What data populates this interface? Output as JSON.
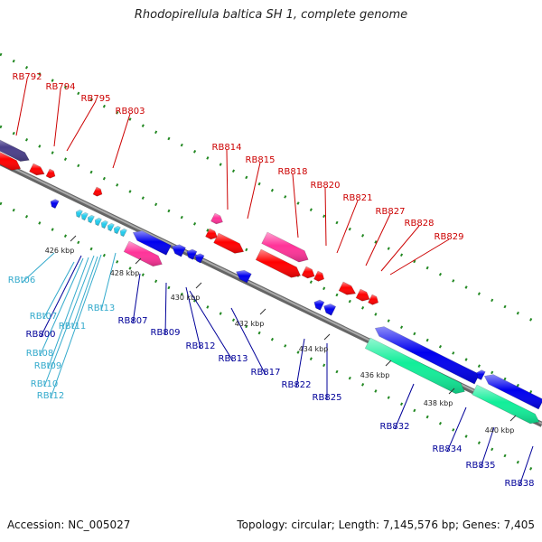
{
  "title": "Rhodopirellula baltica SH 1, complete genome",
  "footer": {
    "accession": "Accession: NC_005027",
    "topology": "Topology: circular; Length: 7,145,576 bp; Genes: 7,405"
  },
  "colors": {
    "forward_gene": "#ff0000",
    "forward_rna": "#ff3399",
    "reverse_gene": "#0000ee",
    "reverse_trna": "#22ccee",
    "reverse_rrna": "#11ee99",
    "other": "#4a3f8a",
    "backbone": "#888888",
    "tick": "#228822",
    "forward_label": "#cc0000",
    "reverse_label": "#000099",
    "trna_label": "#33aacc"
  },
  "ticks": [
    "426 kbp",
    "428 kbp",
    "430 kbp",
    "432 kbp",
    "434 kbp",
    "436 kbp",
    "438 kbp",
    "440 kbp"
  ],
  "forward_labels": [
    "RB792",
    "RB794",
    "RB795",
    "RB803",
    "RB814",
    "RB815",
    "RB818",
    "RB820",
    "RB821",
    "RB827",
    "RB828",
    "RB829"
  ],
  "reverse_labels": [
    "RB807",
    "RB809",
    "RB812",
    "RB813",
    "RB817",
    "RB822",
    "RB825",
    "RB832",
    "RB834",
    "RB835",
    "RB838",
    "RB800"
  ],
  "trna_labels": [
    "RBt06",
    "RBt07",
    "RBt08",
    "RBt09",
    "RBt10",
    "RBt11",
    "RBt12",
    "RBt13"
  ]
}
